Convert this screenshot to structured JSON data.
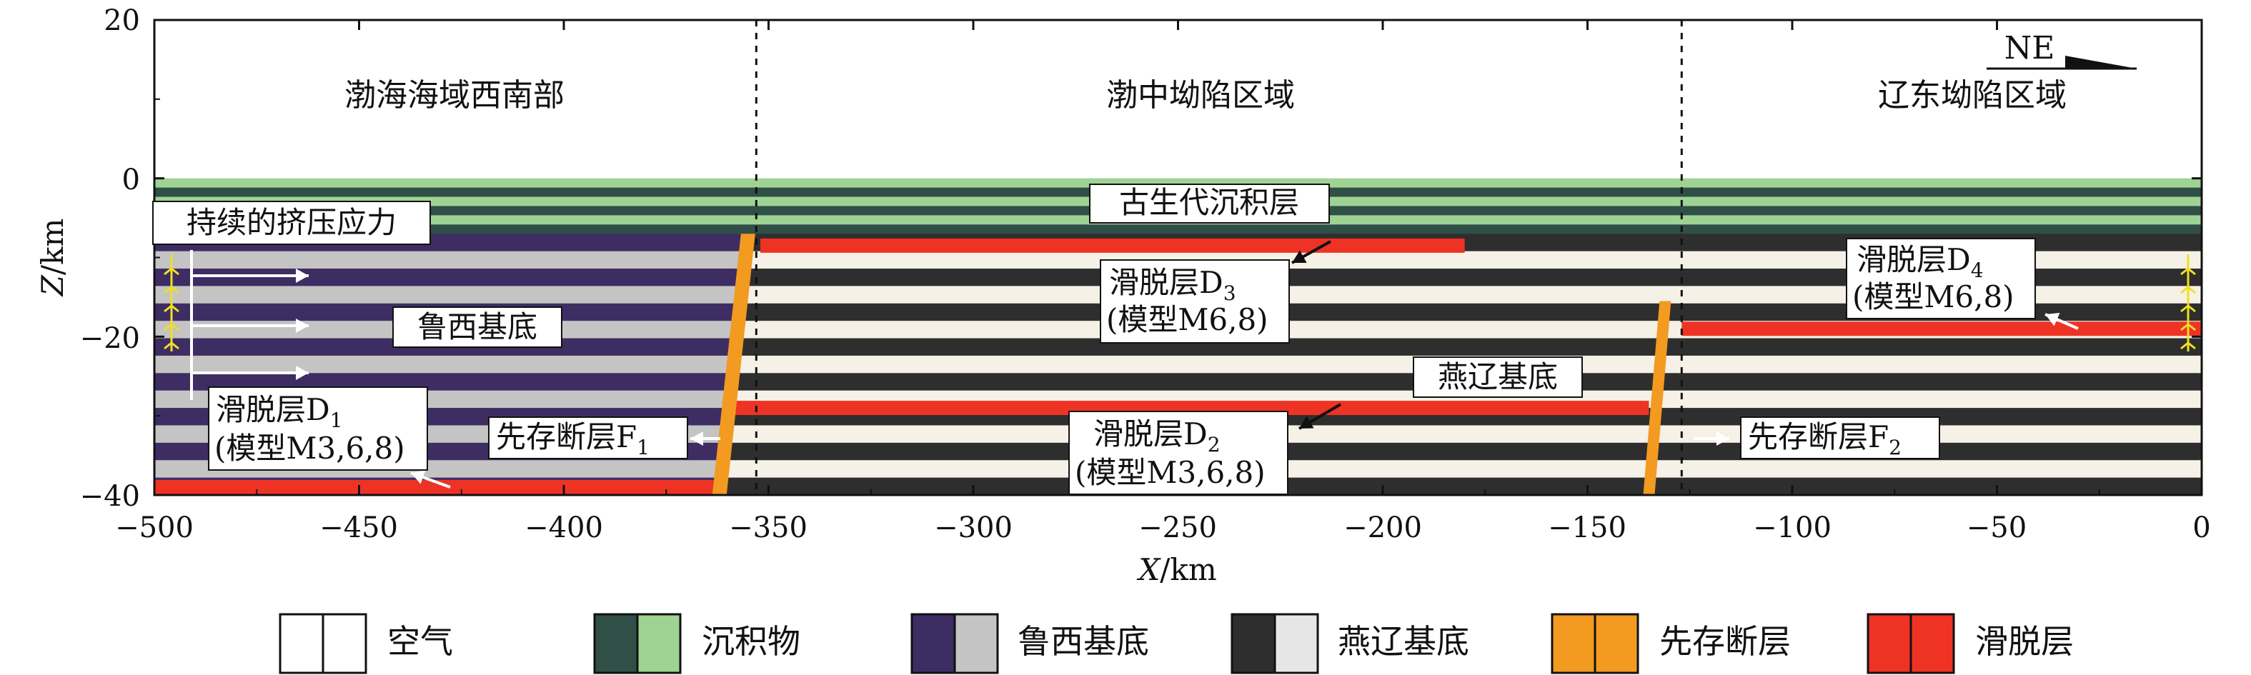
{
  "axes": {
    "x_label": "X",
    "x_unit": "/km",
    "y_label": "Z",
    "y_unit": "/km",
    "x_ticks": [
      "−500",
      "−450",
      "−400",
      "−350",
      "−300",
      "−250",
      "−200",
      "−150",
      "−100",
      "−50",
      "0"
    ],
    "y_ticks": [
      "20",
      "0",
      "−20",
      "−40"
    ],
    "x_range": [
      -500,
      0
    ],
    "z_range": [
      -40,
      20
    ]
  },
  "regions": {
    "left": "渤海海域西南部",
    "middle": "渤中坳陷区域",
    "right": "辽东坳陷区域",
    "boundaries_x": [
      -353,
      -127
    ]
  },
  "direction": {
    "label": "NE"
  },
  "labels": {
    "paleozoic": "古生代沉积层",
    "stress": "持续的挤压应力",
    "luxi_basement": "鲁西基底",
    "yanliao_basement": "燕辽基底",
    "d1_main": "滑脱层D",
    "d1_sub": "1",
    "d1_model": "(模型M3,6,8)",
    "d2_main": "滑脱层D",
    "d2_sub": "2",
    "d2_model": "(模型M3,6,8)",
    "d3_main": "滑脱层D",
    "d3_sub": "3",
    "d3_model": "(模型M6,8)",
    "d4_main": "滑脱层D",
    "d4_sub": "4",
    "d4_model": "(模型M6,8)",
    "f1_main": "先存断层F",
    "f1_sub": "1",
    "f2_main": "先存断层F",
    "f2_sub": "2"
  },
  "model_data": {
    "sediment_top_z": 0,
    "sediment_base_z": -7,
    "model_base_z": -40,
    "fault_f1_x": [
      -355,
      -362
    ],
    "fault_f2_x": [
      -131,
      -135
    ],
    "detachments": [
      {
        "name": "D1",
        "x_from": -500,
        "x_to": -362,
        "z": -39
      },
      {
        "name": "D2",
        "x_from": -359,
        "x_to": -135,
        "z": -29
      },
      {
        "name": "D3",
        "x_from": -352,
        "x_to": -180,
        "z": -8.5
      },
      {
        "name": "D4",
        "x_from": -127,
        "x_to": 0,
        "z": -19
      }
    ]
  },
  "legend": [
    {
      "label": "空气",
      "colors": [
        "#ffffff",
        "#ffffff"
      ]
    },
    {
      "label": "沉积物",
      "colors": [
        "#2f4f47",
        "#9ed393"
      ]
    },
    {
      "label": "鲁西基底",
      "colors": [
        "#3e2d63",
        "#c4c4c4"
      ]
    },
    {
      "label": "燕辽基底",
      "colors": [
        "#2e2e2e",
        "#e6e6e6"
      ]
    },
    {
      "label": "先存断层",
      "colors": [
        "#f39a21",
        "#f39a21"
      ]
    },
    {
      "label": "滑脱层",
      "colors": [
        "#ee3325",
        "#ee3325"
      ]
    }
  ],
  "colors": {
    "sediment_dark": "#2f4f47",
    "sediment_light": "#9ed393",
    "luxi_dark": "#3e2d63",
    "luxi_light": "#c4c4c4",
    "yanliao_dark": "#2e2e2e",
    "yanliao_light": "#f5f1e6",
    "fault": "#f39a21",
    "detachment": "#ee3325",
    "stress_marks": "#f0e020"
  }
}
